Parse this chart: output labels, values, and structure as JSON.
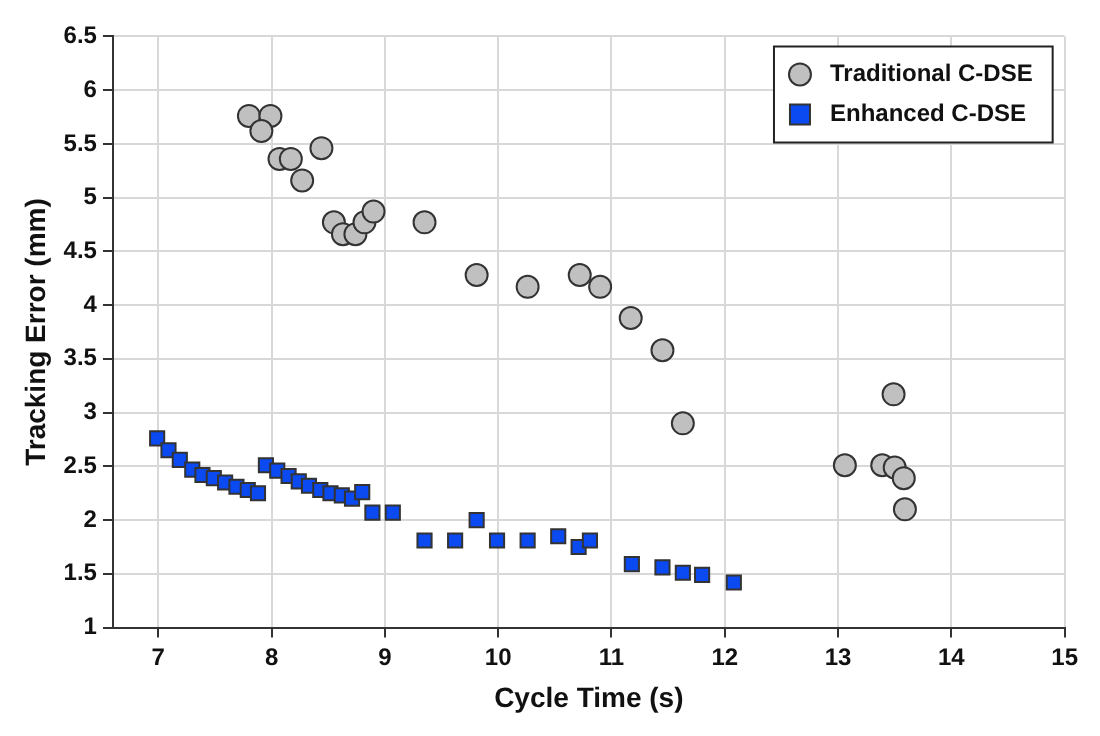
{
  "chart_data": {
    "type": "scatter",
    "xlabel": "Cycle Time (s)",
    "ylabel": "Tracking Error (mm)",
    "xlim": [
      6.6,
      15
    ],
    "ylim": [
      1,
      6.5
    ],
    "xticks": [
      7,
      8,
      9,
      10,
      11,
      12,
      13,
      14,
      15
    ],
    "yticks": [
      1,
      1.5,
      2,
      2.5,
      3,
      3.5,
      4,
      4.5,
      5,
      5.5,
      6,
      6.5
    ],
    "grid": true,
    "legend": "top right",
    "series": [
      {
        "name": "Traditional C-DSE",
        "color": "#c0c0c0",
        "marker": "circle",
        "x": [
          7.8,
          7.99,
          7.91,
          8.07,
          8.17,
          8.27,
          8.44,
          8.55,
          8.63,
          8.74,
          8.82,
          8.9,
          9.35,
          9.81,
          10.26,
          10.72,
          10.9,
          11.17,
          11.45,
          11.63,
          13.06,
          13.39,
          13.5,
          13.49,
          13.58,
          13.59
        ],
        "values": [
          5.76,
          5.76,
          5.62,
          5.36,
          5.36,
          5.16,
          5.46,
          4.77,
          4.66,
          4.66,
          4.77,
          4.87,
          4.77,
          4.28,
          4.17,
          4.28,
          4.17,
          3.88,
          3.58,
          2.9,
          2.51,
          2.51,
          2.49,
          3.17,
          2.39,
          2.1
        ]
      },
      {
        "name": "Enhanced C-DSE",
        "color": "#0a4af0",
        "marker": "square",
        "x": [
          6.99,
          7.09,
          7.19,
          7.3,
          7.39,
          7.49,
          7.59,
          7.69,
          7.79,
          7.88,
          7.95,
          8.05,
          8.15,
          8.24,
          8.33,
          8.43,
          8.52,
          8.62,
          8.71,
          8.8,
          8.89,
          9.07,
          9.35,
          9.62,
          9.81,
          9.99,
          10.26,
          10.53,
          10.71,
          10.81,
          11.18,
          11.45,
          11.63,
          11.8,
          12.08
        ],
        "values": [
          2.76,
          2.65,
          2.56,
          2.47,
          2.42,
          2.39,
          2.35,
          2.31,
          2.28,
          2.25,
          2.51,
          2.46,
          2.41,
          2.36,
          2.32,
          2.28,
          2.25,
          2.23,
          2.2,
          2.26,
          2.07,
          2.07,
          1.81,
          1.81,
          2.0,
          1.81,
          1.81,
          1.85,
          1.75,
          1.81,
          1.59,
          1.56,
          1.51,
          1.49,
          1.42
        ]
      }
    ]
  }
}
